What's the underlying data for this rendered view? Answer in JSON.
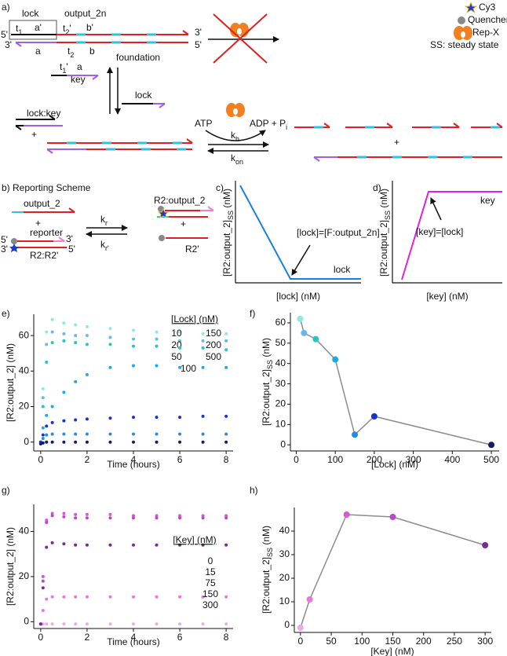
{
  "panel_a": {
    "label": "a)",
    "lock": "lock",
    "output": "output_2n",
    "t1": [
      "t",
      "1"
    ],
    "a_prime": "a'",
    "t2_prime": [
      "t",
      "2",
      "'"
    ],
    "b_prime": "b'",
    "five_top": "5'",
    "three_top": "3'",
    "three_left": "3'",
    "five_right": "5'",
    "a": "a",
    "t2": [
      "t",
      "2"
    ],
    "b": "b",
    "foundation": "foundation",
    "t1_prime": [
      "t",
      "1",
      "'"
    ],
    "key_a": "a",
    "key": "key",
    "lock2": "lock",
    "lockkey": "lock:key",
    "plus1": "+",
    "atp": "ATP",
    "adp": [
      "ADP + P",
      "i"
    ],
    "kh": [
      "k",
      "h"
    ],
    "kon": [
      "k",
      "on"
    ],
    "plus2": "+",
    "cy3": "Cy3",
    "quencher": "Quencher",
    "repx": "Rep-X",
    "ss": "SS: steady state"
  },
  "panel_b": {
    "label": "b) Reporting Scheme",
    "output": "output_2",
    "plus1": "+",
    "reporter": "reporter",
    "five_l": "5'",
    "three_r": "3'",
    "three_l": "3'",
    "five_r": "5'",
    "r2r2": "R2:R2'",
    "kr": [
      "k",
      "r"
    ],
    "kr2": [
      "k",
      "r'"
    ],
    "product": "R2:output_2",
    "plus2": "+",
    "r2p": "R2'"
  },
  "panel_c": {
    "label": "c)",
    "ylabel": [
      "[R2:output_2]",
      "SS",
      " (nM)"
    ],
    "xlabel": "[lock] (nM)",
    "note": "[lock]=[F:output_2n]",
    "series": "lock"
  },
  "panel_d": {
    "label": "d)",
    "ylabel": [
      "[R2:output_2]",
      "SS",
      " (nM)"
    ],
    "xlabel": "[key] (nM)",
    "note": "[key]=[lock]",
    "series": "key"
  },
  "chart_data": [
    {
      "type": "scatter",
      "panel_label": "e)",
      "xlabel": "Time (hours)",
      "ylabel": "[R2:output_2] (nM)",
      "legend_title": "[Lock] (nM)",
      "x": [
        0,
        0.1,
        0.25,
        0.5,
        1,
        1.5,
        2,
        3,
        4,
        5,
        6,
        7,
        8
      ],
      "series": [
        {
          "name": "10",
          "color": "#8fe8e8",
          "values": [
            0,
            30,
            62,
            69,
            67,
            66,
            65,
            64,
            63,
            62,
            62,
            61,
            61
          ]
        },
        {
          "name": "20",
          "color": "#6ab8e8",
          "values": [
            0,
            25,
            55,
            62,
            61,
            60,
            60,
            59,
            58,
            58,
            57,
            57,
            57
          ]
        },
        {
          "name": "50",
          "color": "#22c8c0",
          "values": [
            0,
            20,
            45,
            56,
            57,
            56,
            55,
            55,
            54,
            54,
            53,
            53,
            52
          ]
        },
        {
          "name": "100",
          "color": "#20a8e0",
          "values": [
            0,
            8,
            15,
            20,
            28,
            34,
            38,
            42,
            43,
            43,
            42,
            42,
            42
          ]
        },
        {
          "name": "150",
          "color": "#2a8ae0",
          "values": [
            0,
            2,
            4,
            4.5,
            4.5,
            4.5,
            4.5,
            4.5,
            4.5,
            4.5,
            4.5,
            4.5,
            4.5
          ]
        },
        {
          "name": "200",
          "color": "#1a30d0",
          "values": [
            0,
            4,
            9,
            11,
            12,
            12.5,
            13,
            13.5,
            14,
            14,
            14,
            14.5,
            14.5
          ]
        },
        {
          "name": "500",
          "color": "#101a70",
          "values": [
            -1,
            -0.5,
            0,
            0,
            0,
            0,
            0,
            0,
            0,
            0,
            0,
            0,
            0
          ]
        }
      ],
      "xlim": [
        -0.3,
        8.3
      ],
      "xticks": [
        0,
        2,
        4,
        6,
        8
      ],
      "ylim": [
        -5,
        72
      ],
      "yticks": [
        0,
        20,
        40,
        60
      ]
    },
    {
      "type": "line",
      "panel_label": "f)",
      "xlabel": "[Lock] (nM)",
      "ylabel": [
        "[R2:output_2]",
        "SS",
        " (nM)"
      ],
      "x": [
        10,
        20,
        50,
        100,
        150,
        200,
        500
      ],
      "values": [
        62,
        55,
        52,
        42,
        5,
        14,
        0
      ],
      "point_colors": [
        "#8fe8e8",
        "#6ab8e8",
        "#22c8c0",
        "#20a8e0",
        "#2a8ae0",
        "#1a30d0",
        "#101a70"
      ],
      "line_color": "#8c8c8c",
      "xlim": [
        -15,
        520
      ],
      "xticks": [
        0,
        100,
        200,
        300,
        400,
        500
      ],
      "ylim": [
        -3,
        65
      ],
      "yticks": [
        0,
        10,
        20,
        30,
        40,
        50,
        60
      ]
    },
    {
      "type": "scatter",
      "panel_label": "g)",
      "xlabel": "Time (hours)",
      "ylabel": "[R2:output_2] (nM)",
      "legend_title": "[Key] (nM)",
      "x": [
        0,
        0.1,
        0.25,
        0.5,
        1,
        1.5,
        2,
        3,
        4,
        5,
        6,
        7,
        8
      ],
      "series": [
        {
          "name": "0",
          "color": "#f0a8e8",
          "values": [
            -1,
            -1,
            -1,
            -1,
            -1,
            -1,
            -1,
            -1,
            -1,
            -1,
            -1,
            -1,
            -1
          ]
        },
        {
          "name": "15",
          "color": "#e878d8",
          "values": [
            -1,
            5,
            10,
            11,
            11,
            11,
            11,
            11,
            11,
            11,
            11,
            11,
            11
          ]
        },
        {
          "name": "75",
          "color": "#d858d0",
          "values": [
            -1,
            20,
            45,
            48,
            48,
            47.5,
            47.5,
            47.5,
            47,
            47,
            47,
            47,
            47
          ]
        },
        {
          "name": "150",
          "color": "#b848c8",
          "values": [
            -1,
            18,
            44,
            47,
            46.5,
            46,
            46,
            46,
            46,
            46,
            46,
            46,
            46
          ]
        },
        {
          "name": "300",
          "color": "#7a2a90",
          "values": [
            -1,
            15,
            33,
            35,
            34.5,
            34,
            34,
            34,
            34,
            34,
            34,
            34,
            34
          ]
        }
      ],
      "xlim": [
        -0.3,
        8.3
      ],
      "xticks": [
        0,
        2,
        4,
        6,
        8
      ],
      "ylim": [
        -3,
        52
      ],
      "yticks": [
        0,
        20,
        40
      ]
    },
    {
      "type": "line",
      "panel_label": "h)",
      "xlabel": "[Key] (nM)",
      "ylabel": [
        "[R2:output_2]",
        "SS",
        " (nM)"
      ],
      "x": [
        0,
        15,
        75,
        150,
        300
      ],
      "values": [
        -1,
        11,
        47,
        46,
        34
      ],
      "point_colors": [
        "#f0a8e8",
        "#e878d8",
        "#d858d0",
        "#b848c8",
        "#7a2a90"
      ],
      "line_color": "#8c8c8c",
      "xlim": [
        -10,
        310
      ],
      "xticks": [
        0,
        50,
        100,
        150,
        200,
        250,
        300
      ],
      "ylim": [
        -3,
        50
      ],
      "yticks": [
        0,
        10,
        20,
        30,
        40
      ]
    }
  ]
}
